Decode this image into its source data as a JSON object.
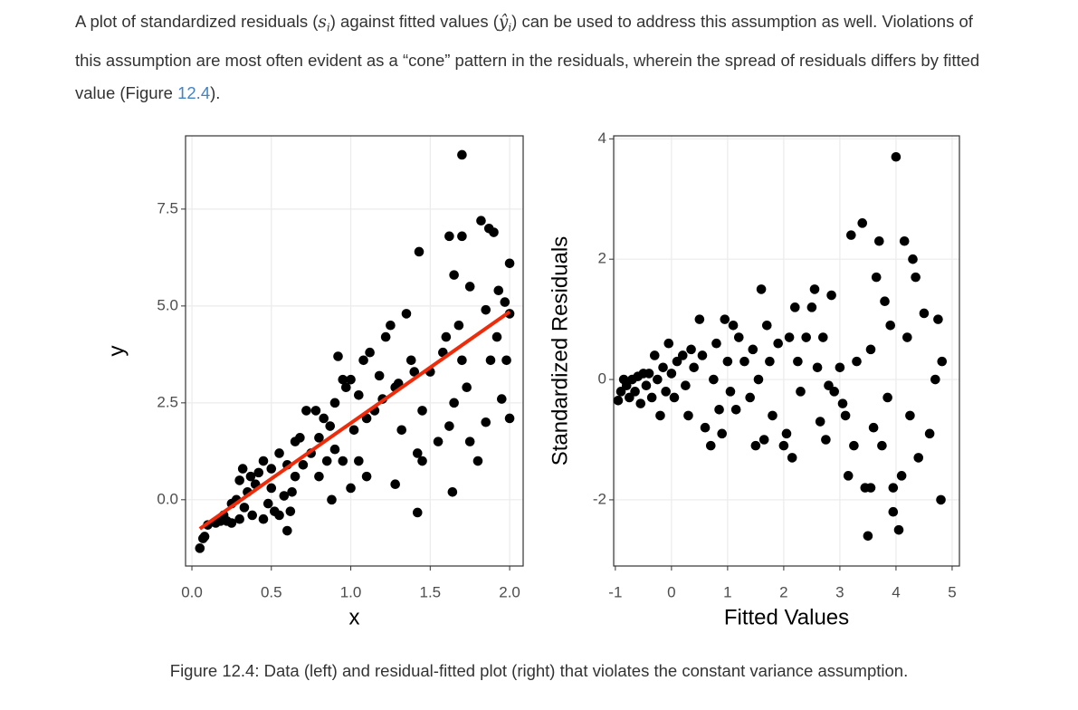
{
  "paragraph": {
    "text_1": "A plot of standardized residuals (",
    "math_1": "s",
    "math_1_sub": "i",
    "text_2": ") against fitted values (",
    "math_2": "ŷ",
    "math_2_sub": "i",
    "text_3": ") can be used to address this assumption as well. Violations of this assumption are most often evident as a “cone” pattern in the residuals, wherein the spread of residuals differs by fitted value (Figure ",
    "link": "12.4",
    "text_4": ")."
  },
  "chart_data": [
    {
      "type": "scatter",
      "xlabel": "x",
      "ylabel": "y",
      "color": "#000000",
      "grid": true,
      "xlim": [
        -0.04,
        2.085
      ],
      "ylim": [
        -1.71,
        9.39
      ],
      "xticks": [
        {
          "value": 0,
          "label": "0.0"
        },
        0.5,
        {
          "value": 1,
          "label": "1.0"
        },
        1.5,
        {
          "value": 2,
          "label": "2.0"
        }
      ],
      "yticks": [
        {
          "value": 0,
          "label": "0.0"
        },
        2.5,
        {
          "value": 5,
          "label": "5.0"
        },
        7.5
      ],
      "x": [
        0.05,
        0.07,
        0.08,
        0.1,
        0.15,
        0.18,
        0.2,
        0.22,
        0.25,
        0.25,
        0.28,
        0.3,
        0.3,
        0.32,
        0.33,
        0.35,
        0.37,
        0.38,
        0.4,
        0.42,
        0.45,
        0.45,
        0.48,
        0.5,
        0.5,
        0.52,
        0.55,
        0.55,
        0.58,
        0.6,
        0.6,
        0.62,
        0.63,
        0.65,
        0.65,
        0.68,
        0.7,
        0.72,
        0.75,
        0.78,
        0.8,
        0.8,
        0.83,
        0.85,
        0.87,
        0.88,
        0.9,
        0.9,
        0.92,
        0.95,
        0.95,
        0.97,
        1.0,
        1.0,
        1.02,
        1.05,
        1.05,
        1.08,
        1.1,
        1.1,
        1.12,
        1.15,
        1.18,
        1.2,
        1.22,
        1.25,
        1.28,
        1.28,
        1.3,
        1.32,
        1.35,
        1.38,
        1.4,
        1.42,
        1.45,
        1.45,
        1.5,
        1.42,
        1.43,
        1.55,
        1.58,
        1.6,
        1.62,
        1.62,
        1.65,
        1.65,
        1.68,
        1.7,
        1.7,
        1.64,
        1.73,
        1.75,
        1.75,
        1.7,
        1.8,
        1.82,
        1.85,
        1.85,
        1.88,
        1.9,
        1.92,
        1.95,
        1.97,
        2.0,
        2.0,
        2.0,
        1.98,
        1.87,
        1.93
      ],
      "values": [
        -1.25,
        -1.0,
        -0.95,
        -0.65,
        -0.6,
        -0.55,
        -0.4,
        -0.55,
        -0.6,
        -0.1,
        0.0,
        0.5,
        -0.5,
        0.8,
        -0.2,
        0.2,
        0.6,
        -0.4,
        0.4,
        0.7,
        1.0,
        -0.5,
        -0.1,
        0.8,
        0.3,
        -0.3,
        1.2,
        -0.4,
        0.1,
        0.9,
        -0.8,
        -0.3,
        0.2,
        0.6,
        1.5,
        1.6,
        0.9,
        2.3,
        1.2,
        2.3,
        1.6,
        0.6,
        2.1,
        1.0,
        1.9,
        0.0,
        1.3,
        2.5,
        3.7,
        3.1,
        1.0,
        2.9,
        3.1,
        0.3,
        1.8,
        2.7,
        1.0,
        3.6,
        0.6,
        2.1,
        3.8,
        2.3,
        3.2,
        2.6,
        4.2,
        4.5,
        2.9,
        0.4,
        3.0,
        1.8,
        4.8,
        3.6,
        3.3,
        1.2,
        1.0,
        2.3,
        3.3,
        -0.33,
        6.4,
        1.5,
        3.8,
        4.2,
        1.9,
        6.8,
        2.5,
        5.8,
        4.5,
        6.8,
        3.6,
        0.2,
        2.9,
        1.5,
        5.5,
        8.9,
        1.0,
        7.2,
        4.9,
        2.0,
        3.6,
        6.9,
        4.2,
        2.6,
        5.1,
        4.8,
        2.1,
        6.1,
        3.6,
        7.0,
        5.4
      ],
      "fit": {
        "x": [
          0.05,
          2.0
        ],
        "values": [
          -0.75,
          4.85
        ],
        "color": "#ee2c0c"
      }
    },
    {
      "type": "scatter",
      "xlabel": "Fitted Values",
      "ylabel": "Standardized Residuals",
      "color": "#000000",
      "grid": true,
      "xlim": [
        -1.03,
        5.13
      ],
      "ylim": [
        -3.1,
        4.05
      ],
      "xticks": [
        -1,
        0,
        1,
        2,
        3,
        4,
        5
      ],
      "yticks": [
        -2,
        0,
        2,
        4
      ],
      "x": [
        -0.95,
        -0.9,
        -0.85,
        -0.8,
        -0.75,
        -0.7,
        -0.65,
        -0.6,
        -0.55,
        -0.5,
        -0.45,
        -0.4,
        -0.35,
        -0.3,
        -0.25,
        -0.2,
        -0.15,
        -0.1,
        -0.05,
        0.0,
        0.05,
        0.1,
        0.2,
        0.25,
        0.3,
        0.35,
        0.4,
        0.5,
        0.55,
        0.6,
        0.7,
        0.75,
        0.8,
        0.85,
        0.9,
        0.95,
        1.0,
        1.05,
        1.1,
        1.15,
        1.2,
        1.3,
        1.4,
        1.45,
        1.5,
        1.55,
        1.6,
        1.65,
        1.7,
        1.75,
        1.8,
        1.9,
        2.0,
        2.05,
        2.1,
        2.15,
        2.2,
        2.25,
        2.3,
        2.4,
        2.5,
        2.55,
        2.6,
        2.65,
        2.7,
        2.75,
        2.8,
        2.85,
        2.9,
        3.0,
        3.05,
        3.1,
        3.15,
        3.2,
        3.25,
        3.3,
        3.4,
        3.45,
        3.5,
        3.55,
        3.6,
        3.65,
        3.7,
        3.75,
        3.8,
        3.85,
        3.9,
        3.95,
        4.0,
        4.05,
        4.1,
        4.15,
        4.2,
        4.25,
        4.3,
        4.35,
        4.4,
        4.5,
        4.6,
        4.7,
        4.75,
        4.8,
        4.82,
        3.95,
        3.55
      ],
      "values": [
        -0.35,
        -0.2,
        0.0,
        -0.1,
        -0.3,
        0.0,
        -0.2,
        0.05,
        -0.4,
        0.1,
        -0.1,
        0.1,
        -0.3,
        0.4,
        0.0,
        -0.6,
        0.2,
        -0.2,
        0.6,
        0.1,
        -0.3,
        0.3,
        0.4,
        -0.1,
        -0.6,
        0.5,
        0.2,
        1.0,
        0.4,
        -0.8,
        -1.1,
        0.0,
        0.6,
        -0.5,
        -0.9,
        1.0,
        0.3,
        -0.2,
        0.9,
        -0.5,
        0.7,
        0.3,
        -0.3,
        0.5,
        -1.1,
        0.0,
        1.5,
        -1.0,
        0.9,
        0.3,
        -0.6,
        0.6,
        -1.1,
        -0.9,
        0.7,
        -1.3,
        1.2,
        0.3,
        -0.2,
        0.7,
        1.2,
        1.5,
        0.2,
        -0.7,
        0.7,
        -1.0,
        -0.1,
        1.4,
        -0.2,
        0.2,
        -0.4,
        -0.6,
        -1.6,
        2.4,
        -1.1,
        0.3,
        2.6,
        -1.8,
        -2.6,
        0.5,
        -0.8,
        1.7,
        2.3,
        -1.1,
        1.3,
        -0.3,
        0.9,
        -2.2,
        3.7,
        -2.5,
        -1.6,
        2.3,
        0.7,
        -0.6,
        2.0,
        1.7,
        -1.3,
        1.1,
        -0.9,
        0.0,
        1.0,
        -2.0,
        0.3,
        -1.8,
        -1.8
      ]
    }
  ],
  "caption": "Figure 12.4: Data (left) and residual-fitted plot (right) that violates the constant variance assumption."
}
